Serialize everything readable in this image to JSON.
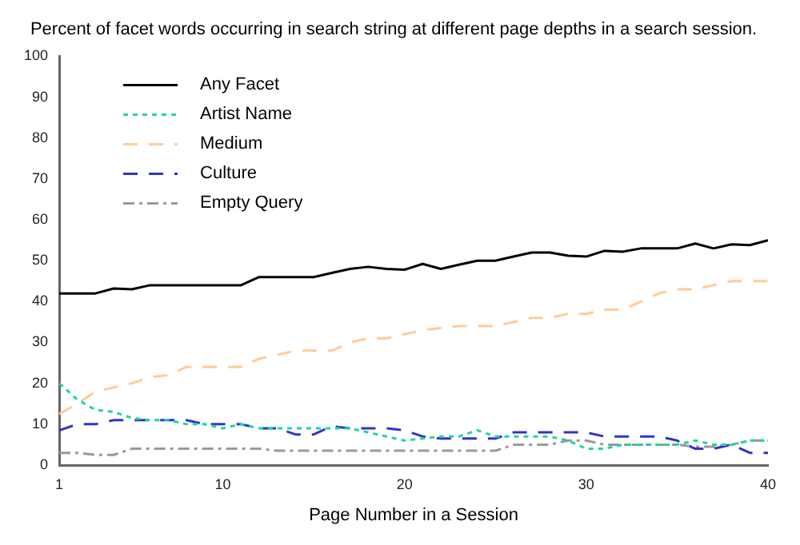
{
  "chart_data": {
    "type": "line",
    "title": "Percent of facet words occurring in search string at different page depths in a search session.",
    "xlabel": "Page Number in a Session",
    "x": [
      1,
      2,
      3,
      4,
      5,
      6,
      7,
      8,
      9,
      10,
      11,
      12,
      13,
      14,
      15,
      16,
      17,
      18,
      19,
      20,
      21,
      22,
      23,
      24,
      25,
      26,
      27,
      28,
      29,
      30,
      31,
      32,
      33,
      34,
      35,
      36,
      37,
      38,
      39,
      40
    ],
    "xlim": [
      1,
      40
    ],
    "xticks": [
      1,
      10,
      20,
      30,
      40
    ],
    "ylim": [
      0,
      100
    ],
    "yticks": [
      0,
      10,
      20,
      30,
      40,
      50,
      60,
      70,
      80,
      90,
      100
    ],
    "grid": false,
    "legend": "top left",
    "marker": "none",
    "series": [
      {
        "name": "Any Facet",
        "color": "#000000",
        "line_style": "solid",
        "values": [
          42,
          42,
          42,
          43.2,
          43,
          44,
          44,
          44,
          44,
          44,
          44,
          46,
          46,
          46,
          46,
          47,
          48,
          48.5,
          48,
          47.8,
          49.2,
          48,
          49,
          50,
          50,
          51,
          52,
          52,
          51.2,
          51,
          52.4,
          52.2,
          53,
          53,
          53,
          54.2,
          53,
          54,
          53.8,
          55
        ]
      },
      {
        "name": "Artist Name",
        "color": "#1fd6a0",
        "line_style": "dotted",
        "values": [
          20,
          16,
          13.5,
          13,
          11.5,
          11,
          11,
          10,
          10,
          9,
          10,
          9,
          9,
          9,
          9,
          9,
          9,
          8,
          7,
          6,
          6.5,
          7,
          7,
          8.5,
          7,
          7,
          7,
          7,
          6,
          4,
          4,
          5,
          5,
          5,
          5,
          6,
          5,
          5,
          6,
          6
        ]
      },
      {
        "name": "Medium",
        "color": "#ffcc99",
        "line_style": "dashed",
        "values": [
          12.5,
          15,
          18,
          19,
          20,
          21.5,
          22,
          24,
          24,
          24,
          24,
          26,
          27,
          28,
          28,
          28,
          30,
          31,
          31,
          32,
          33,
          33.5,
          34,
          34,
          34,
          35,
          36,
          36,
          37,
          37,
          38,
          38,
          40,
          42,
          43,
          43,
          44,
          45,
          45,
          45
        ]
      },
      {
        "name": "Culture",
        "color": "#3333cc",
        "line_style": "dashed",
        "values": [
          8.5,
          10,
          10,
          11,
          11,
          11,
          11,
          11,
          10,
          10,
          10,
          9,
          9,
          7.5,
          7.5,
          9.5,
          9,
          9,
          9,
          8.5,
          7,
          6.5,
          6.5,
          6.5,
          6.5,
          8,
          8,
          8,
          8,
          8,
          7,
          7,
          7,
          7,
          6,
          4,
          4,
          5,
          3,
          3
        ]
      },
      {
        "name": "Empty Query",
        "color": "#999999",
        "line_style": "dashdot",
        "values": [
          3,
          3,
          2.5,
          2.5,
          4,
          4,
          4,
          4,
          4,
          4,
          4,
          4,
          3.5,
          3.5,
          3.5,
          3.5,
          3.5,
          3.5,
          3.5,
          3.5,
          3.5,
          3.5,
          3.5,
          3.5,
          3.5,
          5,
          5,
          5,
          6,
          6,
          5,
          5,
          5,
          5,
          5,
          4.5,
          4.5,
          5,
          6,
          6
        ]
      }
    ]
  }
}
